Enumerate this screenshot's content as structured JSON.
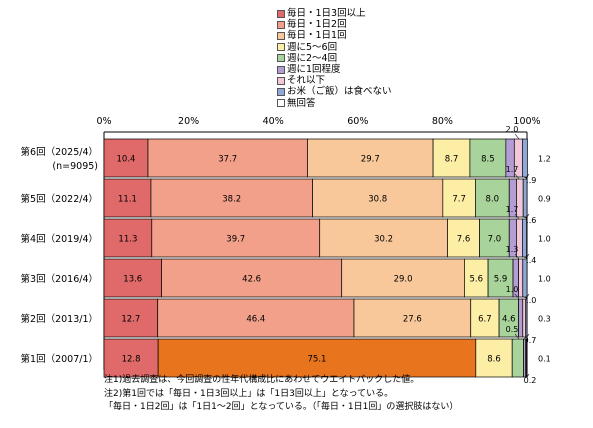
{
  "chart_data": {
    "type": "bar",
    "orientation": "horizontal",
    "stacked": true,
    "xlim": [
      0,
      100
    ],
    "x_ticks": [
      "0%",
      "20%",
      "40%",
      "60%",
      "80%",
      "100%"
    ],
    "legend_position": "top",
    "categories": [
      {
        "label": "第6回（2025/4）",
        "sublabel": "(n=9095)"
      },
      {
        "label": "第5回（2022/4）",
        "sublabel": ""
      },
      {
        "label": "第4回（2019/4）",
        "sublabel": ""
      },
      {
        "label": "第3回（2016/4）",
        "sublabel": ""
      },
      {
        "label": "第2回（2013/1）",
        "sublabel": ""
      },
      {
        "label": "第1回（2007/1）",
        "sublabel": ""
      }
    ],
    "series": [
      {
        "name": "毎日・1日3回以上",
        "color": "#e06a6a",
        "values": [
          10.4,
          11.1,
          11.3,
          13.6,
          12.7,
          12.8
        ]
      },
      {
        "name": "毎日・1日2回",
        "color": "#f2a08a",
        "values": [
          37.7,
          38.2,
          39.7,
          42.6,
          46.4,
          0
        ]
      },
      {
        "name": "毎日・1日1回",
        "color": "#f9c89a",
        "values": [
          29.7,
          30.8,
          30.2,
          29.0,
          27.6,
          0
        ]
      },
      {
        "name": "週に5～6回",
        "color": "#fdeea6",
        "values": [
          8.7,
          7.7,
          7.6,
          5.6,
          6.7,
          8.6
        ]
      },
      {
        "name": "週に2～4回",
        "color": "#a8d39a",
        "values": [
          8.5,
          8.0,
          7.0,
          5.9,
          4.6,
          2.7
        ]
      },
      {
        "name": "週に1回程度",
        "color": "#b39dd4",
        "values": [
          2.0,
          1.7,
          1.7,
          1.3,
          1.0,
          0.5
        ]
      },
      {
        "name": "それ以下",
        "color": "#f2c8d8",
        "values": [
          1.9,
          1.6,
          1.4,
          1.0,
          0.7,
          0.2
        ]
      },
      {
        "name": "お米（ご飯）は食べない",
        "color": "#8fa8d8",
        "values": [
          1.2,
          0.9,
          1.0,
          1.0,
          0.3,
          0.1
        ]
      },
      {
        "name": "無回答",
        "color": "#ffffff",
        "values": [
          0,
          0,
          0,
          0,
          0,
          0
        ]
      }
    ],
    "extra_series": {
      "name": "毎日・1日1～2回",
      "color": "#e8741e",
      "category_index": 5,
      "value": 75.1
    },
    "notes": [
      "注1)過去調査は、今回調査の性年代構成比にあわせてウエイトバックした値。",
      "注2)第1回では「毎日・1日3回以上」は「1日3回以上」となっている。",
      "「毎日・1日2回」は「1日1～2回」となっている。（「毎日・1日1回」の選択肢はない）"
    ]
  }
}
